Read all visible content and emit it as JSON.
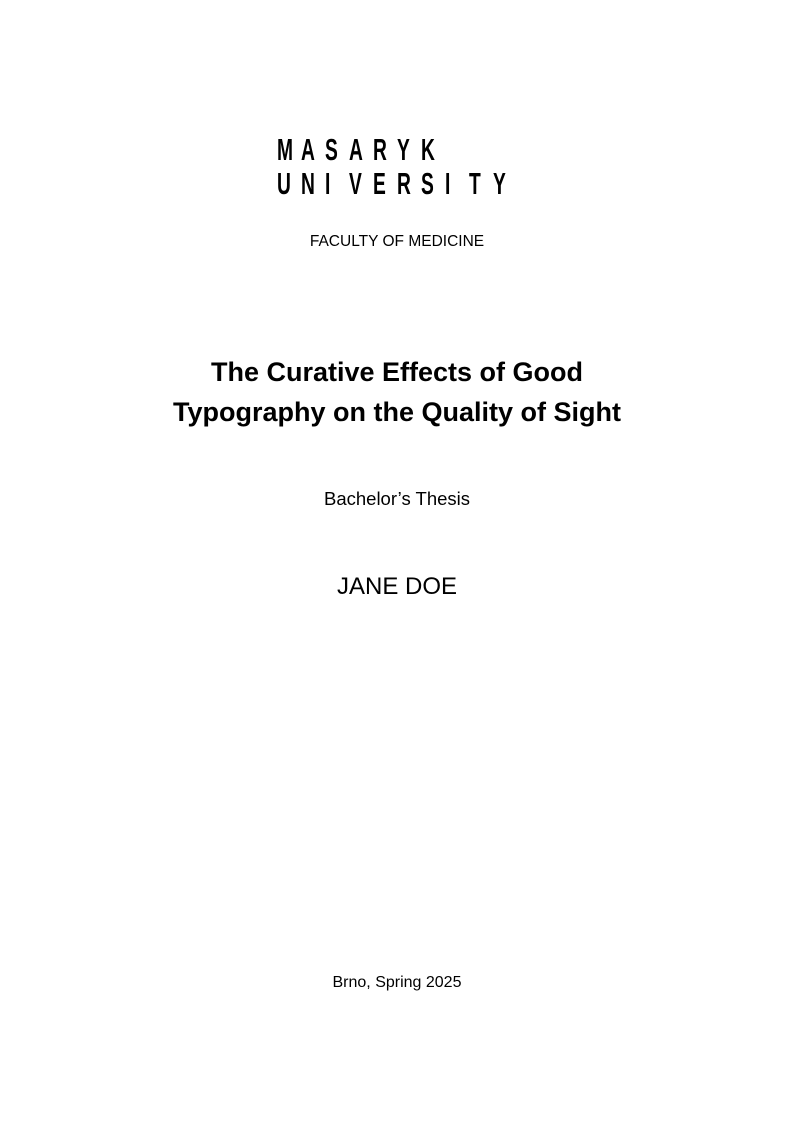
{
  "logo": {
    "line1": [
      "M",
      "A",
      "S",
      "A",
      "R",
      "Y",
      "K"
    ],
    "line2": [
      "U",
      "N",
      "I",
      "V",
      "E",
      "R",
      "S",
      "I",
      "T",
      "Y"
    ]
  },
  "faculty": "FACULTY OF MEDICINE",
  "title": {
    "line1": "The Curative Effects of Good",
    "line2": "Typography on the Quality of Sight"
  },
  "thesis_type": "Bachelor’s Thesis",
  "author": "JANE DOE",
  "place_date": "Brno, Spring 2025"
}
